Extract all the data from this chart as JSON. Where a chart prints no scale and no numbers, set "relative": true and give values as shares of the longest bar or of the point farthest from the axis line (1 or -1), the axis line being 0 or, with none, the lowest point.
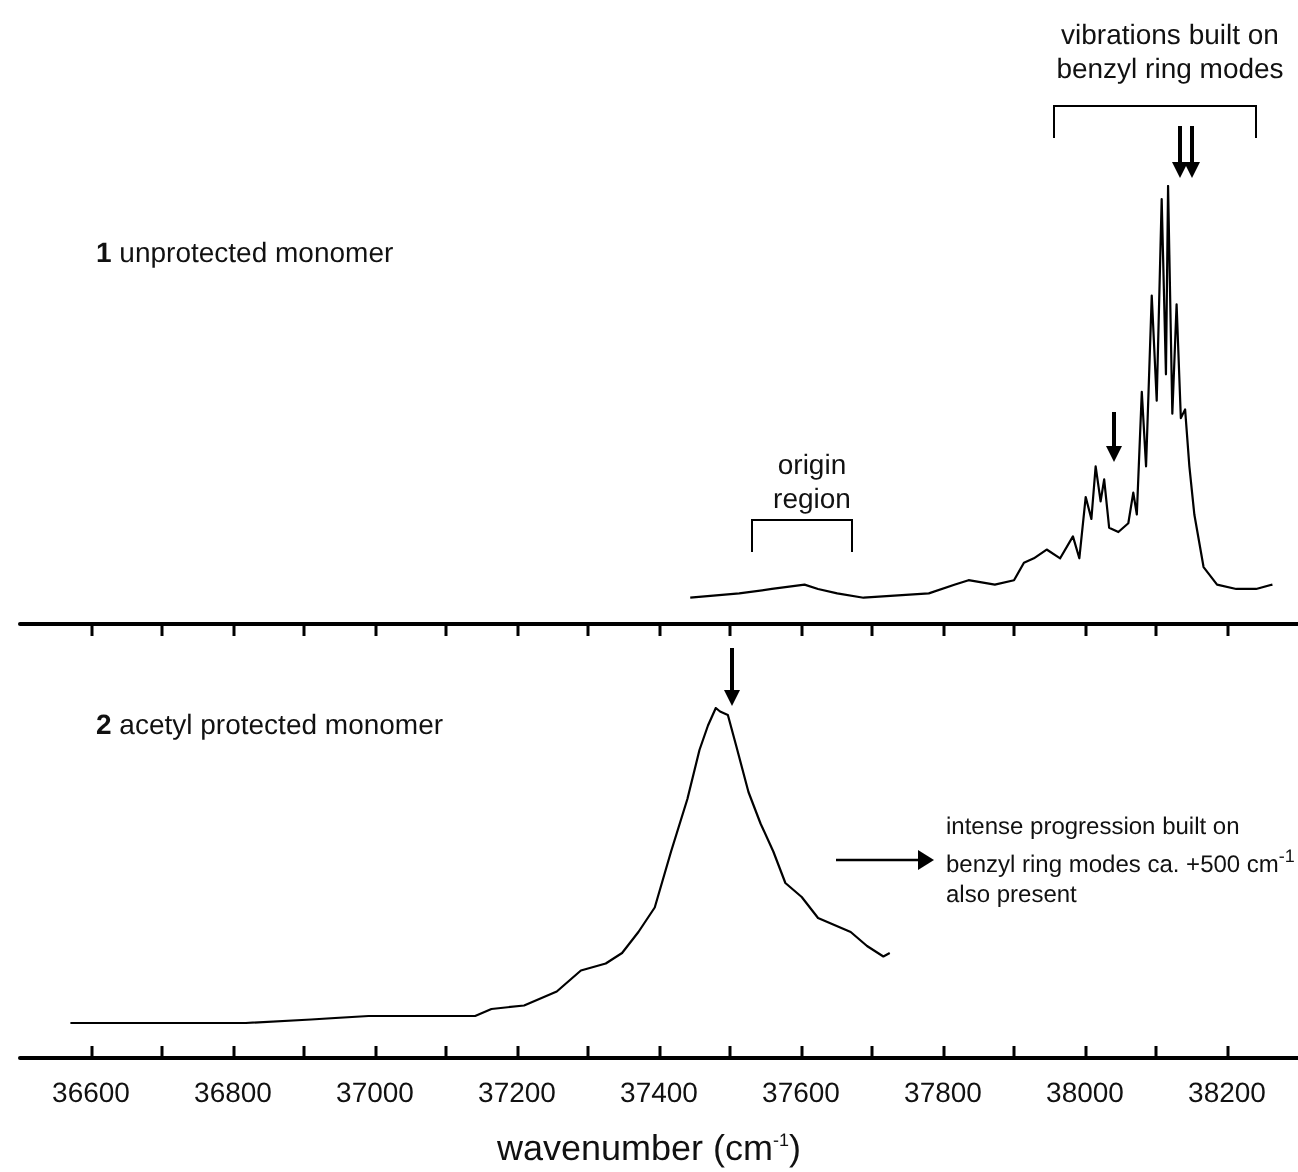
{
  "chart_data": [
    {
      "type": "line",
      "relative": true,
      "tick_labels": false,
      "xlim": [
        36500,
        38300
      ],
      "xticks": [
        36600,
        {
          "value": 36700,
          "label": null
        },
        36800,
        {
          "value": 36900,
          "label": null
        },
        37000,
        {
          "value": 37100,
          "label": null
        },
        37200,
        {
          "value": 37300,
          "label": null
        },
        37400,
        {
          "value": 37500,
          "label": null
        },
        37600,
        {
          "value": 37700,
          "label": null
        },
        37800,
        {
          "value": 37900,
          "label": null
        },
        38000,
        {
          "value": 38100,
          "label": null
        },
        38200
      ],
      "annotations": [
        "1 unprotected monomer",
        "origin region",
        "vibrations built on benzyl ring modes"
      ],
      "series": [
        {
          "color": "#000000",
          "x": [
            37444,
            37513,
            37559,
            37605,
            37624,
            37651,
            37688,
            37780,
            37817,
            37836,
            37873,
            37900,
            37914,
            37928,
            37946,
            37965,
            37983,
            37992,
            38001,
            38009,
            38015,
            38022,
            38027,
            38034,
            38047,
            38061,
            38068,
            38073,
            38080,
            38086,
            38094,
            38101,
            38108,
            38114,
            38117,
            38123,
            38129,
            38135,
            38141,
            38147,
            38154,
            38167,
            38186,
            38213,
            38241,
            38264
          ],
          "values": [
            0.06,
            0.07,
            0.08,
            0.09,
            0.08,
            0.07,
            0.06,
            0.07,
            0.09,
            0.1,
            0.09,
            0.1,
            0.14,
            0.15,
            0.17,
            0.15,
            0.2,
            0.15,
            0.29,
            0.24,
            0.36,
            0.28,
            0.33,
            0.22,
            0.21,
            0.23,
            0.3,
            0.25,
            0.53,
            0.36,
            0.75,
            0.51,
            0.97,
            0.57,
            1.0,
            0.48,
            0.73,
            0.47,
            0.49,
            0.36,
            0.25,
            0.13,
            0.09,
            0.08,
            0.08,
            0.09
          ]
        }
      ]
    },
    {
      "type": "line",
      "relative": true,
      "tick_labels": "x",
      "xlim": [
        36500,
        38300
      ],
      "xticks": [
        36600,
        {
          "value": 36700,
          "label": null
        },
        36800,
        {
          "value": 36900,
          "label": null
        },
        37000,
        {
          "value": 37100,
          "label": null
        },
        37200,
        {
          "value": 37300,
          "label": null
        },
        37400,
        {
          "value": 37500,
          "label": null
        },
        37600,
        {
          "value": 37700,
          "label": null
        },
        37800,
        {
          "value": 37900,
          "label": null
        },
        38000,
        {
          "value": 38100,
          "label": null
        },
        38200
      ],
      "xlabel": "wavenumber (cm$^{-1}$)",
      "annotations": [
        "2 acetyl protected monomer",
        "intense progression built on benzyl ring modes ca. +500 cm$^{-1}$ also present"
      ],
      "series": [
        {
          "color": "#000000",
          "x": [
            36571,
            36703,
            36818,
            36910,
            36991,
            37049,
            37141,
            37164,
            37210,
            37256,
            37290,
            37325,
            37348,
            37371,
            37394,
            37417,
            37440,
            37457,
            37469,
            37480,
            37486,
            37497,
            37509,
            37526,
            37543,
            37561,
            37578,
            37601,
            37624,
            37647,
            37670,
            37693,
            37716,
            37725
          ],
          "values": [
            0.1,
            0.1,
            0.1,
            0.11,
            0.12,
            0.12,
            0.12,
            0.14,
            0.15,
            0.19,
            0.25,
            0.27,
            0.3,
            0.36,
            0.43,
            0.59,
            0.74,
            0.88,
            0.95,
            1.0,
            0.99,
            0.98,
            0.89,
            0.76,
            0.67,
            0.59,
            0.5,
            0.46,
            0.4,
            0.38,
            0.36,
            0.32,
            0.29,
            0.3
          ]
        }
      ]
    }
  ]
}
